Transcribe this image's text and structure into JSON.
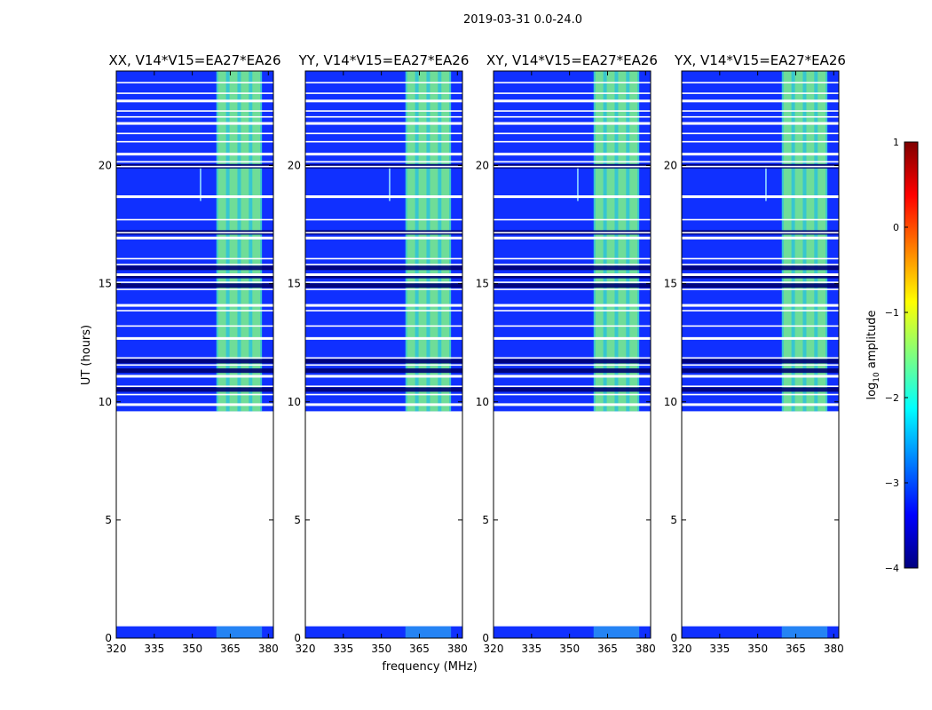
{
  "figure_title": "2019-03-31 0.0-24.0",
  "chart_data": [
    {
      "type": "heatmap",
      "title": "XX, V14*V15=EA27*EA26",
      "xlabel": "",
      "ylabel": "UT (hours)",
      "xlim": [
        320,
        382
      ],
      "ylim": [
        0,
        24
      ],
      "x_ticks": [
        320,
        335,
        350,
        365,
        380
      ],
      "y_ticks": [
        0,
        5,
        10,
        15,
        20
      ],
      "data_time_ranges": [
        [
          0.0,
          0.5
        ],
        [
          9.6,
          24.0
        ]
      ],
      "high_amplitude_band_mhz": [
        359.5,
        377.5
      ],
      "narrow_rfi_line_mhz": 353
    },
    {
      "type": "heatmap",
      "title": "YY, V14*V15=EA27*EA26",
      "xlabel": "frequency (MHz)",
      "ylabel": "",
      "xlim": [
        320,
        382
      ],
      "ylim": [
        0,
        24
      ],
      "x_ticks": [
        320,
        335,
        350,
        365,
        380
      ],
      "y_ticks": [
        0,
        5,
        10,
        15,
        20
      ],
      "data_time_ranges": [
        [
          0.0,
          0.5
        ],
        [
          9.6,
          24.0
        ]
      ],
      "high_amplitude_band_mhz": [
        359.5,
        377.5
      ],
      "narrow_rfi_line_mhz": 353
    },
    {
      "type": "heatmap",
      "title": "XY, V14*V15=EA27*EA26",
      "xlabel": "",
      "ylabel": "",
      "xlim": [
        320,
        382
      ],
      "ylim": [
        0,
        24
      ],
      "x_ticks": [
        320,
        335,
        350,
        365,
        380
      ],
      "y_ticks": [
        0,
        5,
        10,
        15,
        20
      ],
      "data_time_ranges": [
        [
          0.0,
          0.5
        ],
        [
          9.6,
          24.0
        ]
      ],
      "high_amplitude_band_mhz": [
        359.5,
        377.5
      ],
      "narrow_rfi_line_mhz": 353
    },
    {
      "type": "heatmap",
      "title": "YX, V14*V15=EA27*EA26",
      "xlabel": "",
      "ylabel": "",
      "xlim": [
        320,
        382
      ],
      "ylim": [
        0,
        24
      ],
      "x_ticks": [
        320,
        335,
        350,
        365,
        380
      ],
      "y_ticks": [
        0,
        5,
        10,
        15,
        20
      ],
      "data_time_ranges": [
        [
          0.0,
          0.5
        ],
        [
          9.6,
          24.0
        ]
      ],
      "high_amplitude_band_mhz": [
        359.5,
        377.5
      ],
      "narrow_rfi_line_mhz": 353
    }
  ],
  "gap_hours": [
    9.9,
    10.3,
    10.65,
    11.1,
    11.55,
    11.85,
    12.7,
    13.2,
    13.85,
    14.1,
    14.75,
    15.05,
    15.4,
    15.8,
    16.05,
    16.95,
    17.15,
    17.7,
    18.7,
    19.95,
    20.15,
    20.5,
    21.0,
    21.35,
    21.8,
    22.05,
    22.3,
    22.75,
    23.05,
    23.5
  ],
  "strong_stripe_hours": [
    10.5,
    11.3,
    11.7,
    14.9,
    15.3,
    15.65,
    17.15,
    19.95
  ],
  "colorbar": {
    "label": "log10 amplitude",
    "label_main": "log",
    "label_sub": "10",
    "label_rest": " amplitude",
    "range": [
      -4,
      1
    ],
    "ticks": [
      "1",
      "0",
      "−1",
      "−2",
      "−3",
      "−4"
    ],
    "tick_values": [
      1,
      0,
      -1,
      -2,
      -3,
      -4
    ],
    "colormap": [
      "#00007f",
      "#0000ff",
      "#007fff",
      "#00ffff",
      "#7fff7f",
      "#ffff00",
      "#ff7f00",
      "#ff0000",
      "#7f0000"
    ]
  }
}
